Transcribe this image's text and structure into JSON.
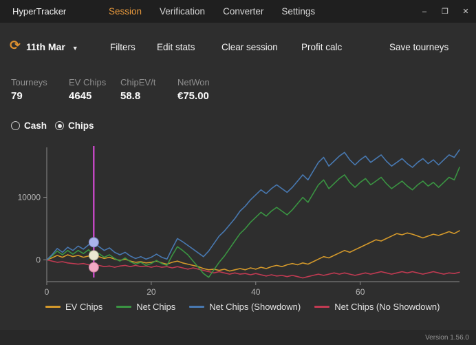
{
  "window": {
    "title": "HyperTracker",
    "controls": {
      "minimize": "–",
      "maximize": "❐",
      "close": "✕"
    }
  },
  "nav": {
    "tabs": [
      {
        "label": "Session",
        "active": true
      },
      {
        "label": "Verification",
        "active": false
      },
      {
        "label": "Converter",
        "active": false
      },
      {
        "label": "Settings",
        "active": false
      }
    ]
  },
  "toolbar": {
    "refresh_icon": "⟳",
    "date": "11th Mar",
    "caret": "▼",
    "buttons": [
      "Filters",
      "Edit stats",
      "Clear session",
      "Profit calc",
      "Save tourneys"
    ]
  },
  "stats": [
    {
      "label": "Tourneys",
      "value": "79"
    },
    {
      "label": "EV Chips",
      "value": "4645"
    },
    {
      "label": "ChipEV/t",
      "value": "58.8"
    },
    {
      "label": "NetWon",
      "value": "€75.00"
    }
  ],
  "mode": {
    "options": [
      {
        "label": "Cash",
        "selected": false
      },
      {
        "label": "Chips",
        "selected": true
      }
    ]
  },
  "chart_data": {
    "type": "line",
    "title": "",
    "xlabel": "",
    "ylabel": "",
    "xlim": [
      0,
      79
    ],
    "ylim": [
      -3500,
      18000
    ],
    "xticks": [
      0,
      20,
      40,
      60
    ],
    "yticks": [
      0,
      10000
    ],
    "grid": false,
    "legend_position": "bottom",
    "axis_color": "#8a8a8a",
    "tick_text_color": "#b5b5b5",
    "series": [
      {
        "name": "EV Chips",
        "color": "#d4992b",
        "values": [
          0,
          300,
          700,
          400,
          800,
          500,
          700,
          400,
          600,
          300,
          500,
          200,
          400,
          100,
          -100,
          100,
          -200,
          -400,
          -300,
          -500,
          -400,
          -200,
          -500,
          -700,
          -400,
          -200,
          -500,
          -700,
          -900,
          -1100,
          -1400,
          -1600,
          -1500,
          -1700,
          -1500,
          -1800,
          -1600,
          -1400,
          -1600,
          -1300,
          -1500,
          -1200,
          -1400,
          -1100,
          -900,
          -1100,
          -800,
          -600,
          -800,
          -500,
          -700,
          -300,
          100,
          500,
          300,
          700,
          1100,
          1500,
          1200,
          1600,
          2000,
          2400,
          2800,
          3200,
          3000,
          3400,
          3800,
          4200,
          4000,
          4300,
          4100,
          3800,
          3500,
          3800,
          4100,
          3900,
          4200,
          4500,
          4200,
          4645
        ]
      },
      {
        "name": "Net Chips",
        "color": "#3a9442",
        "values": [
          0,
          600,
          1400,
          800,
          1500,
          900,
          1500,
          1000,
          1600,
          700,
          1000,
          400,
          800,
          200,
          -200,
          300,
          -300,
          -700,
          -400,
          -900,
          -600,
          -100,
          -600,
          -900,
          700,
          2100,
          1500,
          800,
          -200,
          -1200,
          -2200,
          -2800,
          -1600,
          -400,
          600,
          1800,
          3000,
          4200,
          5000,
          6000,
          6800,
          7600,
          7000,
          7800,
          8400,
          7800,
          7200,
          8000,
          9000,
          10000,
          9200,
          10600,
          12000,
          12800,
          11400,
          12200,
          13000,
          13600,
          12400,
          11600,
          12400,
          13000,
          12000,
          12600,
          13200,
          12200,
          11400,
          12000,
          12600,
          11800,
          11200,
          12000,
          12600,
          11800,
          12400,
          11600,
          12400,
          13200,
          12800,
          14800
        ]
      },
      {
        "name": "Net Chips (Showdown)",
        "color": "#4878b0",
        "values": [
          0,
          800,
          1800,
          1200,
          2000,
          1500,
          2200,
          1700,
          2400,
          2800,
          2100,
          1500,
          1900,
          1200,
          800,
          1200,
          600,
          200,
          500,
          100,
          400,
          900,
          400,
          100,
          1800,
          3400,
          2900,
          2300,
          1700,
          1100,
          500,
          1400,
          2600,
          3800,
          4600,
          5600,
          6600,
          7800,
          8600,
          9600,
          10400,
          11200,
          10600,
          11400,
          12000,
          11400,
          10800,
          11600,
          12600,
          13600,
          12800,
          14200,
          15600,
          16400,
          15000,
          15800,
          16600,
          17200,
          16000,
          15200,
          16000,
          16600,
          15600,
          16200,
          16800,
          15800,
          15000,
          15600,
          16200,
          15400,
          14800,
          15600,
          16200,
          15400,
          16000,
          15200,
          16000,
          16800,
          16400,
          17600
        ]
      },
      {
        "name": "Net Chips (No Showdown)",
        "color": "#c13a52",
        "values": [
          0,
          -200,
          -400,
          -300,
          -500,
          -600,
          -700,
          -600,
          -800,
          -1200,
          -900,
          -1100,
          -1000,
          -1200,
          -1000,
          -900,
          -1100,
          -900,
          -1100,
          -1000,
          -1200,
          -1000,
          -1200,
          -1100,
          -1300,
          -1100,
          -1300,
          -1500,
          -1300,
          -1500,
          -1700,
          -1900,
          -2100,
          -1900,
          -2100,
          -2300,
          -2100,
          -2300,
          -2200,
          -2400,
          -2200,
          -2400,
          -2600,
          -2400,
          -2600,
          -2500,
          -2700,
          -2500,
          -2700,
          -2900,
          -2700,
          -2500,
          -2300,
          -2500,
          -2300,
          -2100,
          -2300,
          -2100,
          -2300,
          -2500,
          -2300,
          -2100,
          -2300,
          -2100,
          -1900,
          -2100,
          -2300,
          -2100,
          -1900,
          -2100,
          -1900,
          -2100,
          -2300,
          -2100,
          -1900,
          -2100,
          -2300,
          -2100,
          -2200,
          -2000
        ]
      }
    ],
    "cursor": {
      "x": 9,
      "color": "#e84ee8",
      "markers": [
        {
          "y": 2800,
          "fill": "#aab4ec",
          "stroke": "#7d86c4"
        },
        {
          "y": 700,
          "fill": "#e9e7d0",
          "stroke": "#b8b69a"
        },
        {
          "y": -1200,
          "fill": "#f2a9c4",
          "stroke": "#c97d9b"
        }
      ]
    }
  },
  "footer": {
    "version": "Version 1.56.0"
  },
  "colors": {
    "accent": "#e8993c",
    "background": "#2e2e2e",
    "titlebar": "#1f1f1f"
  }
}
